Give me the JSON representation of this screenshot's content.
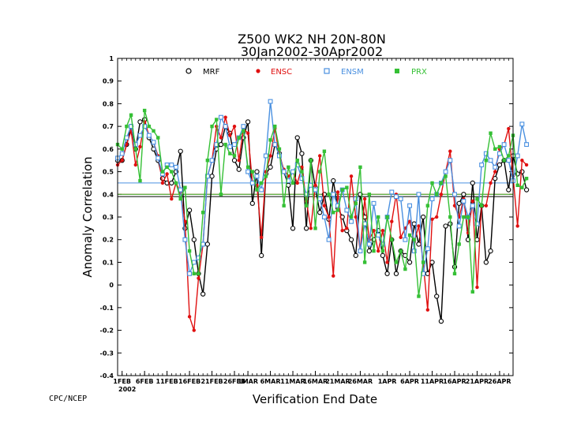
{
  "credit": "CPC/NCEP",
  "chart_data": {
    "type": "line",
    "title": "Z500 WK2 NH 20N-80N",
    "subtitle": "30Jan2002-30Apr2002",
    "xlabel": "Verification End Date",
    "ylabel": "Anomaly Correlation",
    "ylim": [
      -0.4,
      1
    ],
    "yticks": [
      -0.4,
      -0.3,
      -0.2,
      -0.1,
      0,
      0.1,
      0.2,
      0.3,
      0.4,
      0.5,
      0.6,
      0.7,
      0.8,
      0.9,
      1
    ],
    "x_start": 1,
    "x_end": 89,
    "xticks": [
      {
        "day": 2,
        "label": "1FEB"
      },
      {
        "day": 7,
        "label": "6FEB"
      },
      {
        "day": 12,
        "label": "11FEB"
      },
      {
        "day": 17,
        "label": "16FEB"
      },
      {
        "day": 22,
        "label": "21FEB"
      },
      {
        "day": 27,
        "label": "26FEB"
      },
      {
        "day": 30,
        "label": "1MAR"
      },
      {
        "day": 35,
        "label": "6MAR"
      },
      {
        "day": 40,
        "label": "11MAR"
      },
      {
        "day": 45,
        "label": "16MAR"
      },
      {
        "day": 50,
        "label": "21MAR"
      },
      {
        "day": 55,
        "label": "26MAR"
      },
      {
        "day": 61,
        "label": "1APR"
      },
      {
        "day": 66,
        "label": "6APR"
      },
      {
        "day": 71,
        "label": "11APR"
      },
      {
        "day": 76,
        "label": "16APR"
      },
      {
        "day": 81,
        "label": "21APR"
      },
      {
        "day": 86,
        "label": "26APR"
      }
    ],
    "year_label": "2002",
    "legend_position": "top",
    "grid": false,
    "series": [
      {
        "name": "MRF",
        "color": "#000000",
        "marker": "circle",
        "mean": 0.39,
        "values": [
          0.55,
          0.55,
          0.62,
          0.7,
          0.6,
          0.72,
          0.73,
          0.65,
          0.6,
          0.55,
          0.47,
          0.45,
          0.45,
          0.5,
          0.59,
          0.25,
          0.33,
          0.2,
          0.05,
          -0.04,
          0.18,
          0.48,
          0.6,
          0.62,
          0.7,
          0.67,
          0.55,
          0.51,
          0.65,
          0.72,
          0.36,
          0.5,
          0.13,
          0.49,
          0.52,
          0.62,
          0.58,
          0.5,
          0.44,
          0.25,
          0.65,
          0.58,
          0.25,
          0.55,
          0.43,
          0.32,
          0.4,
          0.29,
          0.46,
          0.34,
          0.3,
          0.24,
          0.2,
          0.13,
          0.4,
          0.3,
          0.15,
          0.2,
          0.24,
          0.13,
          0.05,
          0.2,
          0.05,
          0.15,
          0.13,
          0.1,
          0.27,
          0.18,
          0.3,
          0.05,
          0.1,
          -0.05,
          -0.16,
          0.26,
          0.27,
          0.08,
          0.36,
          0.4,
          0.2,
          0.45,
          0.2,
          0.35,
          0.1,
          0.15,
          0.47,
          0.53,
          0.55,
          0.42,
          0.57,
          0.49,
          0.5,
          0.42
        ]
      },
      {
        "name": "ENSC",
        "color": "#e01010",
        "marker": "dot",
        "mean": 0.4,
        "values": [
          0.53,
          0.55,
          0.62,
          0.68,
          0.53,
          0.61,
          0.72,
          0.66,
          0.63,
          0.57,
          0.45,
          0.49,
          0.38,
          0.45,
          0.41,
          0.28,
          -0.14,
          -0.2,
          0.03,
          0.18,
          0.48,
          0.55,
          0.7,
          0.65,
          0.74,
          0.66,
          0.7,
          0.55,
          0.69,
          0.67,
          0.45,
          0.44,
          0.21,
          0.5,
          0.57,
          0.69,
          0.57,
          0.51,
          0.48,
          0.5,
          0.45,
          0.52,
          0.37,
          0.25,
          0.44,
          0.57,
          0.35,
          0.3,
          0.04,
          0.41,
          0.24,
          0.25,
          0.48,
          0.3,
          0.15,
          0.38,
          0.2,
          0.24,
          0.15,
          0.24,
          0.1,
          0.28,
          0.4,
          0.21,
          0.25,
          0.28,
          0.19,
          0.26,
          0.1,
          -0.11,
          0.29,
          0.3,
          0.4,
          0.5,
          0.59,
          0.35,
          0.3,
          0.38,
          0.23,
          0.37,
          -0.01,
          0.35,
          0.35,
          0.45,
          0.5,
          0.6,
          0.62,
          0.69,
          0.48,
          0.26,
          0.55,
          0.53
        ]
      },
      {
        "name": "ENSM",
        "color": "#4a90e0",
        "marker": "square",
        "mean": 0.45,
        "values": [
          0.56,
          0.58,
          0.65,
          0.7,
          0.62,
          0.66,
          0.7,
          0.66,
          0.63,
          0.56,
          0.49,
          0.53,
          0.53,
          0.52,
          0.42,
          0.2,
          0.05,
          0.1,
          0.12,
          0.18,
          0.48,
          0.55,
          0.62,
          0.74,
          0.7,
          0.61,
          0.62,
          0.65,
          0.7,
          0.5,
          0.45,
          0.48,
          0.42,
          0.57,
          0.81,
          0.62,
          0.57,
          0.5,
          0.46,
          0.5,
          0.53,
          0.47,
          0.4,
          0.44,
          0.42,
          0.38,
          0.3,
          0.2,
          0.4,
          0.35,
          0.42,
          0.33,
          0.28,
          0.38,
          0.15,
          0.27,
          0.18,
          0.36,
          0.22,
          0.18,
          0.3,
          0.41,
          0.39,
          0.38,
          0.2,
          0.35,
          0.15,
          0.4,
          0.05,
          0.16,
          0.38,
          0.4,
          0.45,
          0.5,
          0.55,
          0.4,
          0.26,
          0.37,
          0.3,
          0.35,
          0.27,
          0.53,
          0.58,
          0.55,
          0.52,
          0.58,
          0.62,
          0.55,
          0.46,
          0.57,
          0.71,
          0.62
        ]
      },
      {
        "name": "PRX",
        "color": "#35c035",
        "marker": "filled-square",
        "mean": 0.4,
        "values": [
          0.62,
          0.6,
          0.7,
          0.75,
          0.6,
          0.46,
          0.77,
          0.7,
          0.68,
          0.65,
          0.5,
          0.52,
          0.5,
          0.45,
          0.38,
          0.43,
          0.15,
          0.05,
          0.05,
          0.32,
          0.55,
          0.7,
          0.73,
          0.4,
          0.62,
          0.58,
          0.57,
          0.65,
          0.68,
          0.52,
          0.5,
          0.42,
          0.45,
          0.48,
          0.64,
          0.7,
          0.6,
          0.35,
          0.52,
          0.45,
          0.55,
          0.5,
          0.35,
          0.55,
          0.25,
          0.5,
          0.59,
          0.4,
          0.32,
          0.33,
          0.42,
          0.43,
          0.3,
          0.36,
          0.52,
          0.1,
          0.4,
          0.15,
          0.3,
          0.15,
          0.3,
          0.2,
          0.1,
          0.15,
          0.07,
          0.22,
          0.2,
          -0.05,
          0.1,
          0.35,
          0.45,
          0.4,
          0.45,
          0.48,
          0.3,
          0.05,
          0.18,
          0.3,
          0.3,
          -0.03,
          0.38,
          0.35,
          0.55,
          0.67,
          0.6,
          0.61,
          0.55,
          0.57,
          0.66,
          0.44,
          0.43,
          0.47
        ]
      }
    ]
  }
}
